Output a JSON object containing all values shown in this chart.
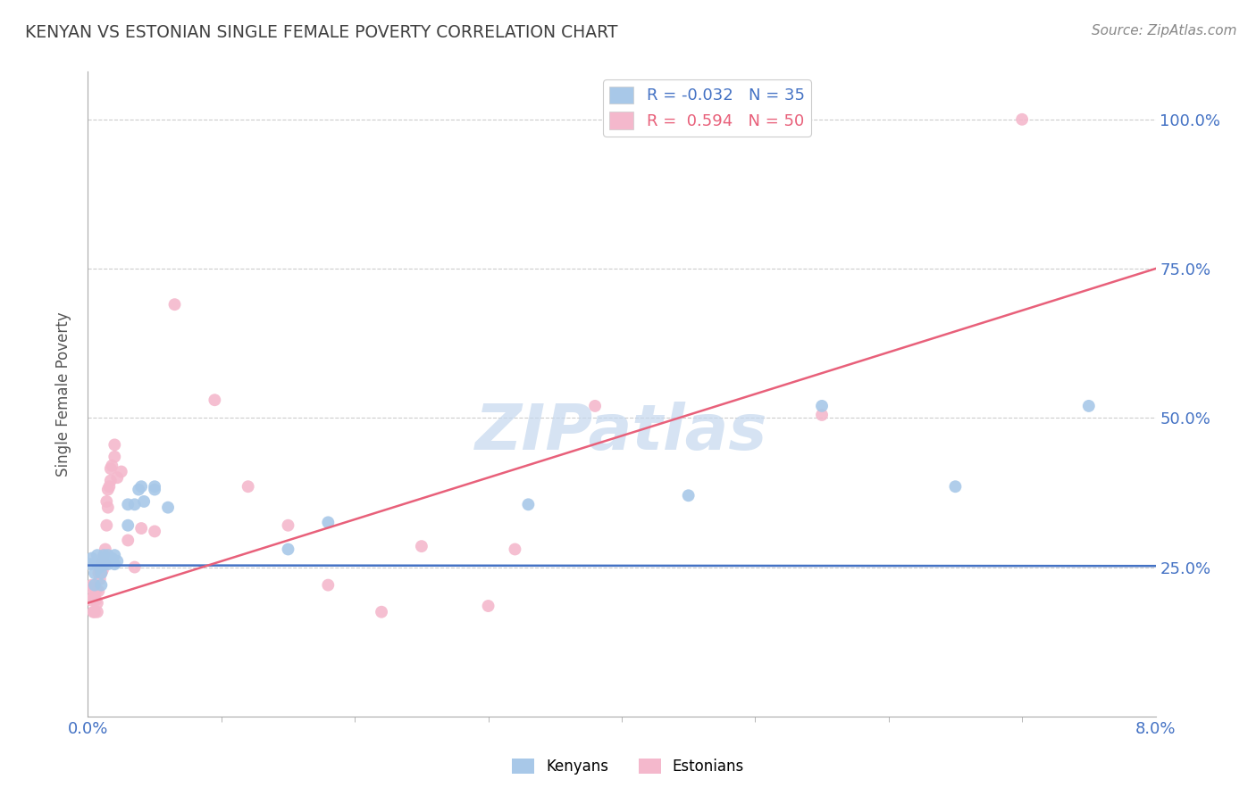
{
  "title": "KENYAN VS ESTONIAN SINGLE FEMALE POVERTY CORRELATION CHART",
  "source": "Source: ZipAtlas.com",
  "ylabel": "Single Female Poverty",
  "xlim": [
    0.0,
    0.08
  ],
  "ylim": [
    0.0,
    1.05
  ],
  "yticks": [
    0.25,
    0.5,
    0.75,
    1.0
  ],
  "ytick_labels": [
    "25.0%",
    "50.0%",
    "75.0%",
    "100.0%"
  ],
  "xtick_labels": [
    "0.0%",
    "8.0%"
  ],
  "xticks": [
    0.0,
    0.08
  ],
  "kenyan_color": "#a8c8e8",
  "estonian_color": "#f4b8cc",
  "kenyan_line_color": "#4472c4",
  "estonian_line_color": "#e8607a",
  "legend_R_kenyan": "-0.032",
  "legend_N_kenyan": "35",
  "legend_R_estonian": "0.594",
  "legend_N_estonian": "50",
  "title_color": "#404040",
  "source_color": "#888888",
  "axis_label_color": "#4472c4",
  "kenyan_x": [
    0.0002,
    0.0003,
    0.0005,
    0.0005,
    0.0007,
    0.0007,
    0.0009,
    0.001,
    0.001,
    0.0012,
    0.0012,
    0.0013,
    0.0015,
    0.0015,
    0.0017,
    0.0018,
    0.002,
    0.002,
    0.0022,
    0.003,
    0.003,
    0.0035,
    0.0038,
    0.004,
    0.0042,
    0.005,
    0.005,
    0.006,
    0.015,
    0.018,
    0.033,
    0.045,
    0.055,
    0.065,
    0.075
  ],
  "kenyan_y": [
    0.255,
    0.265,
    0.22,
    0.24,
    0.255,
    0.27,
    0.25,
    0.24,
    0.22,
    0.255,
    0.27,
    0.26,
    0.27,
    0.255,
    0.26,
    0.265,
    0.255,
    0.27,
    0.26,
    0.32,
    0.355,
    0.355,
    0.38,
    0.385,
    0.36,
    0.38,
    0.385,
    0.35,
    0.28,
    0.325,
    0.355,
    0.37,
    0.52,
    0.385,
    0.52
  ],
  "estonian_x": [
    0.0002,
    0.0002,
    0.0003,
    0.0004,
    0.0004,
    0.0005,
    0.0005,
    0.0006,
    0.0006,
    0.0007,
    0.0007,
    0.0008,
    0.0008,
    0.0009,
    0.0009,
    0.001,
    0.001,
    0.0011,
    0.0011,
    0.0012,
    0.0013,
    0.0013,
    0.0014,
    0.0014,
    0.0015,
    0.0015,
    0.0016,
    0.0017,
    0.0017,
    0.0018,
    0.002,
    0.002,
    0.0022,
    0.0025,
    0.003,
    0.0035,
    0.004,
    0.005,
    0.0065,
    0.0095,
    0.012,
    0.015,
    0.018,
    0.022,
    0.025,
    0.03,
    0.032,
    0.038,
    0.055,
    0.07
  ],
  "estonian_y": [
    0.195,
    0.215,
    0.22,
    0.175,
    0.2,
    0.175,
    0.2,
    0.195,
    0.21,
    0.175,
    0.19,
    0.21,
    0.24,
    0.23,
    0.245,
    0.24,
    0.255,
    0.26,
    0.245,
    0.27,
    0.255,
    0.28,
    0.32,
    0.36,
    0.35,
    0.38,
    0.385,
    0.395,
    0.415,
    0.42,
    0.435,
    0.455,
    0.4,
    0.41,
    0.295,
    0.25,
    0.315,
    0.31,
    0.69,
    0.53,
    0.385,
    0.32,
    0.22,
    0.175,
    0.285,
    0.185,
    0.28,
    0.52,
    0.505,
    1.0
  ],
  "kenyan_trend": [
    0.253,
    0.252
  ],
  "estonian_trend": [
    0.19,
    0.75
  ],
  "background_color": "#ffffff",
  "grid_color": "#cccccc",
  "watermark_text": "ZIPatlas",
  "watermark_color": "#c5d8ee"
}
